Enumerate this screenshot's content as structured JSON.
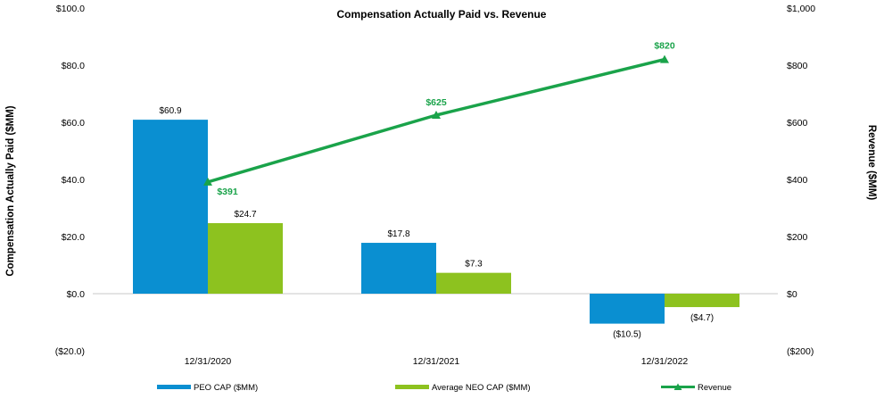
{
  "chart_data": {
    "type": "bar",
    "title": "Compensation Actually  Paid vs. Revenue",
    "categories": [
      "12/31/2020",
      "12/31/2021",
      "12/31/2022"
    ],
    "ylabel": "Compensation Actually Paid ($MM)",
    "y2label": "Revenue ($MM)",
    "ylim": [
      -20,
      100
    ],
    "y2lim": [
      -200,
      1000
    ],
    "y_ticks": [
      100,
      80,
      60,
      40,
      20,
      0,
      -20
    ],
    "y_tick_labels": [
      "$100.0",
      "$80.0",
      "$60.0",
      "$40.0",
      "$20.0",
      "$0.0",
      "($20.0)"
    ],
    "y2_ticks": [
      1000,
      800,
      600,
      400,
      200,
      0,
      -200
    ],
    "y2_tick_labels": [
      "$1,000",
      "$800",
      "$600",
      "$400",
      "$200",
      "$0",
      "($200)"
    ],
    "series": [
      {
        "name": "PEO CAP ($MM)",
        "type": "bar",
        "color": "#0a8fd1",
        "values": [
          60.9,
          17.8,
          -10.5
        ],
        "labels": [
          "$60.9",
          "$17.8",
          "($10.5)"
        ]
      },
      {
        "name": "Average NEO CAP ($MM)",
        "type": "bar",
        "color": "#8dc21f",
        "values": [
          24.7,
          7.3,
          -4.7
        ],
        "labels": [
          "$24.7",
          "$7.3",
          "($4.7)"
        ]
      },
      {
        "name": "Revenue",
        "type": "line",
        "axis": "right",
        "color": "#1aa34a",
        "values": [
          391,
          625,
          820
        ],
        "labels": [
          "$391",
          "$625",
          "$820"
        ]
      }
    ],
    "legend_position": "bottom"
  }
}
